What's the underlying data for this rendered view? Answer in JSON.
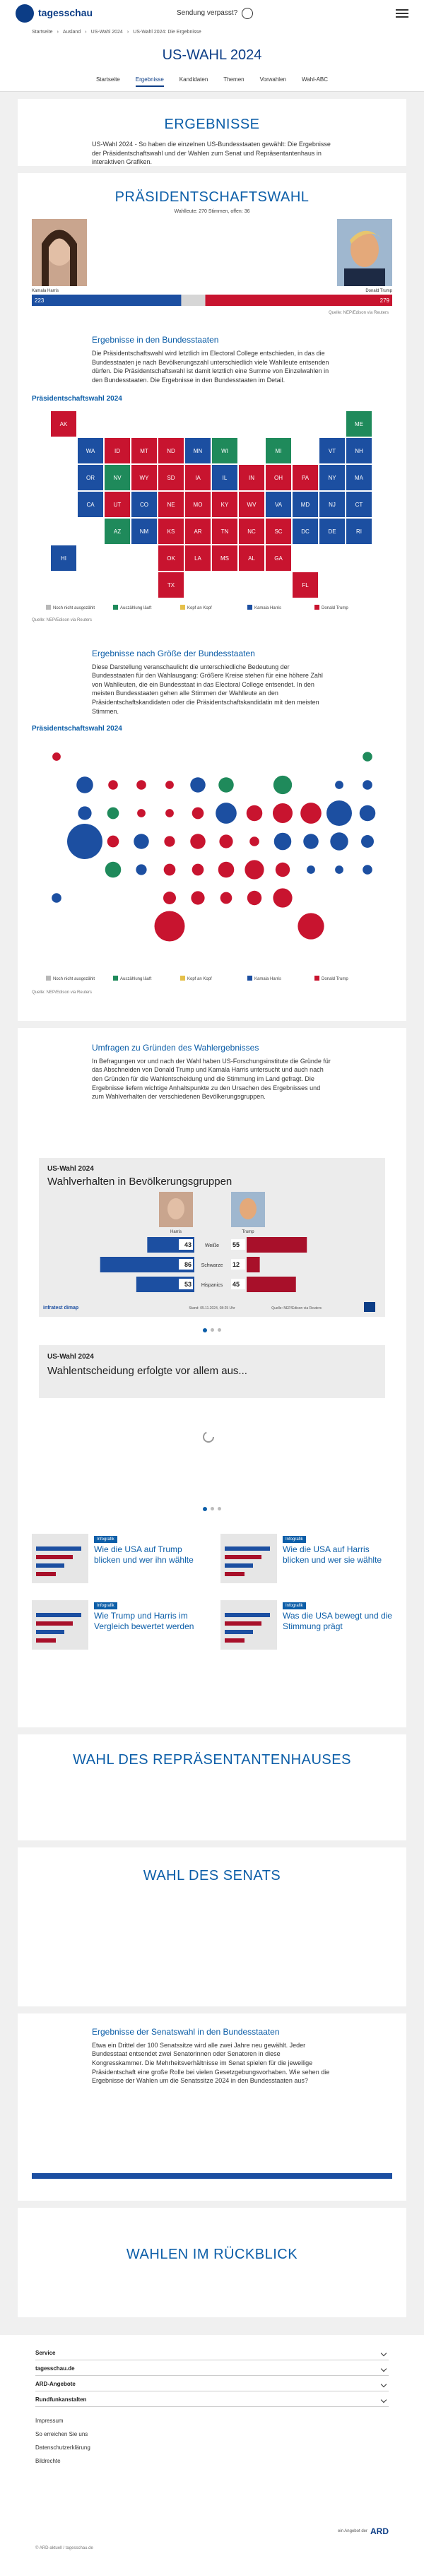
{
  "header": {
    "logo": "tagesschau",
    "missed": "Sendung verpasst?"
  },
  "breadcrumb": [
    "Startseite",
    "Ausland",
    "US-Wahl 2024",
    "US-Wahl 2024: Die Ergebnisse"
  ],
  "page_title": "US-WAHL 2024",
  "tabs": [
    "Startseite",
    "Ergebnisse",
    "Kandidaten",
    "Themen",
    "Vorwahlen",
    "Wahl-ABC"
  ],
  "intro": {
    "heading": "ERGEBNISSE",
    "text": "US-Wahl 2024 - So haben die einzelnen US-Bundesstaaten gewählt: Die Ergebnisse der Präsidentschaftswahl und der Wahlen zum Senat und Repräsentantenhaus in interaktiven Grafiken."
  },
  "president": {
    "heading": "PRÄSIDENTSCHAFTSWAHL",
    "subline": "Wahlleute: 270 Stimmen, offen: 36",
    "states_heading": "Ergebnisse in den Bundesstaaten",
    "states_text": "Die Präsidentschaftswahl wird letztlich im Electoral College entschieden, in das die Bundesstaaten je nach Bevölkerungszahl unterschiedlich viele Wahlleute entsenden dürfen. Die Präsidentschaftswahl ist damit letztlich eine Summe von Einzelwahlen in den Bundesstaaten. Die Ergebnisse in den Bundesstaaten im Detail.",
    "size_heading": "Ergebnisse nach Größe der Bundesstaaten",
    "size_text": "Diese Darstellung veranschaulicht die unterschiedliche Bedeutung der Bundesstaaten für den Wahlausgang: Größere Kreise stehen für eine höhere Zahl von Wahlleuten, die ein Bundesstaat in das Electoral College entsendet. In den meisten Bundesstaaten gehen alle Stimmen der Wahlleute an den Präsidentschaftskandidaten oder die Präsidentschaftskandidatin mit den meisten Stimmen."
  },
  "chart_data": [
    {
      "type": "bar",
      "xlim": [
        0,
        538
      ],
      "source": "Quelle: NEP/Edison via Reuters",
      "series": [
        {
          "name": "Kamala Harris",
          "color": "#1c4fa1",
          "values": [
            223
          ]
        },
        {
          "name": "Donald Trump",
          "color": "#c8142f",
          "values": [
            279
          ]
        }
      ]
    },
    {
      "type": "map",
      "title": "Präsidentschaftswahl 2024",
      "source": "Quelle: NEP/Edison via Reuters",
      "legend": [
        {
          "name": "Noch nicht ausgezählt",
          "color": "#b8b8b8"
        },
        {
          "name": "Auszählung läuft",
          "color": "#1f8a5b"
        },
        {
          "name": "Kopf an Kopf",
          "color": "#e5c04a"
        },
        {
          "name": "Kamala Harris",
          "color": "#1c4fa1"
        },
        {
          "name": "Donald Trump",
          "color": "#c8142f"
        }
      ],
      "states": [
        {
          "label": "AK",
          "color": "#c8142f"
        },
        {
          "label": "ME",
          "color": "#1f8a5b"
        },
        {
          "label": "WA",
          "color": "#1c4fa1"
        },
        {
          "label": "ID",
          "color": "#c8142f"
        },
        {
          "label": "MT",
          "color": "#c8142f"
        },
        {
          "label": "ND",
          "color": "#c8142f"
        },
        {
          "label": "MN",
          "color": "#1c4fa1"
        },
        {
          "label": "WI",
          "color": "#1f8a5b"
        },
        {
          "label": "MI",
          "color": "#1f8a5b"
        },
        {
          "label": "VT",
          "color": "#1c4fa1"
        },
        {
          "label": "NH",
          "color": "#1c4fa1"
        },
        {
          "label": "OR",
          "color": "#1c4fa1"
        },
        {
          "label": "NV",
          "color": "#1f8a5b"
        },
        {
          "label": "WY",
          "color": "#c8142f"
        },
        {
          "label": "SD",
          "color": "#c8142f"
        },
        {
          "label": "IA",
          "color": "#c8142f"
        },
        {
          "label": "IL",
          "color": "#1c4fa1"
        },
        {
          "label": "IN",
          "color": "#c8142f"
        },
        {
          "label": "OH",
          "color": "#c8142f"
        },
        {
          "label": "PA",
          "color": "#c8142f"
        },
        {
          "label": "NY",
          "color": "#1c4fa1"
        },
        {
          "label": "MA",
          "color": "#1c4fa1"
        },
        {
          "label": "CA",
          "color": "#1c4fa1"
        },
        {
          "label": "UT",
          "color": "#c8142f"
        },
        {
          "label": "CO",
          "color": "#1c4fa1"
        },
        {
          "label": "NE",
          "color": "#c8142f"
        },
        {
          "label": "MO",
          "color": "#c8142f"
        },
        {
          "label": "KY",
          "color": "#c8142f"
        },
        {
          "label": "WV",
          "color": "#c8142f"
        },
        {
          "label": "VA",
          "color": "#1c4fa1"
        },
        {
          "label": "MD",
          "color": "#1c4fa1"
        },
        {
          "label": "NJ",
          "color": "#1c4fa1"
        },
        {
          "label": "CT",
          "color": "#1c4fa1"
        },
        {
          "label": "AZ",
          "color": "#1f8a5b"
        },
        {
          "label": "NM",
          "color": "#1c4fa1"
        },
        {
          "label": "KS",
          "color": "#c8142f"
        },
        {
          "label": "AR",
          "color": "#c8142f"
        },
        {
          "label": "TN",
          "color": "#c8142f"
        },
        {
          "label": "NC",
          "color": "#c8142f"
        },
        {
          "label": "SC",
          "color": "#c8142f"
        },
        {
          "label": "DC",
          "color": "#1c4fa1"
        },
        {
          "label": "DE",
          "color": "#1c4fa1"
        },
        {
          "label": "RI",
          "color": "#1c4fa1"
        },
        {
          "label": "HI",
          "color": "#1c4fa1"
        },
        {
          "label": "OK",
          "color": "#c8142f"
        },
        {
          "label": "LA",
          "color": "#c8142f"
        },
        {
          "label": "MS",
          "color": "#c8142f"
        },
        {
          "label": "AL",
          "color": "#c8142f"
        },
        {
          "label": "GA",
          "color": "#c8142f"
        },
        {
          "label": "TX",
          "color": "#c8142f"
        },
        {
          "label": "FL",
          "color": "#c8142f"
        }
      ]
    },
    {
      "type": "bubble-map",
      "title": "Präsidentschaftswahl 2024",
      "source": "Quelle: NEP/Edison via Reuters",
      "legend": [
        {
          "name": "Noch nicht ausgezählt",
          "color": "#b8b8b8"
        },
        {
          "name": "Auszählung läuft",
          "color": "#1f8a5b"
        },
        {
          "name": "Kopf an Kopf",
          "color": "#e5c04a"
        },
        {
          "name": "Kamala Harris",
          "color": "#1c4fa1"
        },
        {
          "name": "Donald Trump",
          "color": "#c8142f"
        }
      ],
      "values": [
        3,
        4,
        12,
        4,
        4,
        3,
        10,
        10,
        15,
        3,
        4,
        8,
        6,
        3,
        3,
        6,
        19,
        11,
        17,
        19,
        28,
        11,
        54,
        6,
        10,
        5,
        10,
        8,
        4,
        13,
        10,
        14,
        7,
        11,
        5,
        6,
        6,
        11,
        16,
        9,
        3,
        3,
        4,
        4,
        7,
        8,
        6,
        9,
        16,
        40,
        30
      ],
      "colors": [
        "#c8142f",
        "#1f8a5b",
        "#1c4fa1",
        "#c8142f",
        "#c8142f",
        "#c8142f",
        "#1c4fa1",
        "#1f8a5b",
        "#1f8a5b",
        "#1c4fa1",
        "#1c4fa1",
        "#1c4fa1",
        "#1f8a5b",
        "#c8142f",
        "#c8142f",
        "#c8142f",
        "#1c4fa1",
        "#c8142f",
        "#c8142f",
        "#c8142f",
        "#1c4fa1",
        "#1c4fa1",
        "#1c4fa1",
        "#c8142f",
        "#1c4fa1",
        "#c8142f",
        "#c8142f",
        "#c8142f",
        "#c8142f",
        "#1c4fa1",
        "#1c4fa1",
        "#1c4fa1",
        "#1c4fa1",
        "#1f8a5b",
        "#1c4fa1",
        "#c8142f",
        "#c8142f",
        "#c8142f",
        "#c8142f",
        "#c8142f",
        "#1c4fa1",
        "#1c4fa1",
        "#1c4fa1",
        "#1c4fa1",
        "#c8142f",
        "#c8142f",
        "#c8142f",
        "#c8142f",
        "#c8142f",
        "#c8142f",
        "#c8142f"
      ]
    },
    {
      "type": "diverging-bar",
      "title": "US-Wahl 2024",
      "subtitle": "Wahlverhalten in Bevölkerungsgruppen",
      "xlim": [
        0,
        100
      ],
      "categories": [
        "Weiße",
        "Schwarze",
        "Hispanics"
      ],
      "series": [
        {
          "name": "Harris",
          "color": "#1c4fa1",
          "values": [
            43,
            86,
            53
          ]
        },
        {
          "name": "Trump",
          "color": "#a8102a",
          "values": [
            55,
            12,
            45
          ]
        }
      ],
      "brand": "infratest dimap",
      "stand": "Stand: 05.11.2024, 08:25 Uhr",
      "source": "Quelle: NEP/Edison via Reuters"
    }
  ],
  "survey": {
    "heading": "Umfragen zu Gründen des Wahlergebnisses",
    "text": "In Befragungen vor und nach der Wahl haben US-Forschungsinstitute die Gründe für das Abschneiden von Donald Trump und Kamala Harris untersucht und auch nach den Gründen für die Wahlentscheidung und die Stimmung im Land gefragt. Die Ergebnisse liefern wichtige Anhaltspunkte zu den Ursachen des Ergebnisses und zum Wahlverhalten der verschiedenen Bevölkerungsgruppen.",
    "slide2_title": "US-Wahl 2024",
    "slide2_subtitle": "Wahlentscheidung erfolgte vor allem aus...",
    "teasers": [
      {
        "label": "Infografik",
        "title": "Wie die USA auf Trump blicken und wer ihn wählte"
      },
      {
        "label": "Infografik",
        "title": "Wie die USA auf Harris blicken und wer sie wählte"
      },
      {
        "label": "Infografik",
        "title": "Wie Trump und Harris im Vergleich bewertet werden"
      },
      {
        "label": "Infografik",
        "title": "Was die USA bewegt und die Stimmung prägt"
      }
    ]
  },
  "house": {
    "heading": "WAHL DES REPRÄSENTANTENHAUSES"
  },
  "senate": {
    "heading": "WAHL DES SENATS"
  },
  "senate_states": {
    "heading": "Ergebnisse der Senatswahl in den Bundesstaaten",
    "text": "Etwa ein Drittel der 100 Senatssitze wird alle zwei Jahre neu gewählt. Jeder Bundesstaat entsendet zwei Senatorinnen oder Senatoren in diese Kongresskammer. Die Mehrheitsverhältnisse im Senat spielen für die jeweilige Präsidentschaft eine große Rolle bei vielen Gesetzgebungsvorhaben. Wie sehen die Ergebnisse der Wahlen um die Senatssitze 2024 in den Bundesstaaten aus?"
  },
  "review": {
    "heading": "WAHLEN IM RÜCKBLICK"
  },
  "footer": {
    "accordions": [
      "Service",
      "tagesschau.de",
      "ARD-Angebote",
      "Rundfunkanstalten"
    ],
    "links": [
      "Impressum",
      "So erreichen Sie uns",
      "Datenschutzerklärung",
      "Bildrechte"
    ],
    "offer": "ein Angebot der",
    "ard": "ARD",
    "copyright": "© ARD-aktuell / tagesschau.de"
  }
}
